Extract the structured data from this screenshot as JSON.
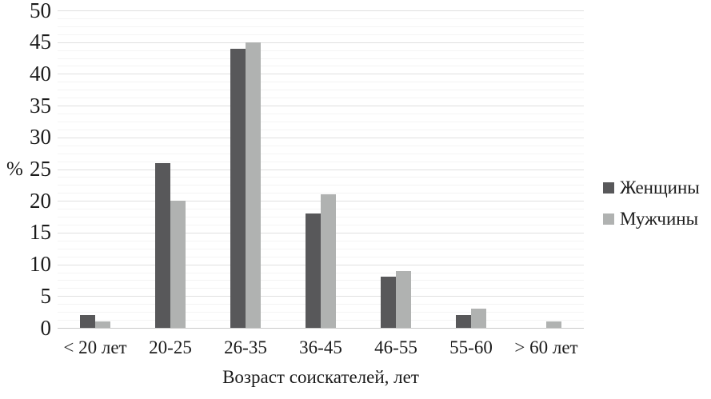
{
  "chart_data": {
    "type": "bar",
    "title": "",
    "categories": [
      "< 20 лет",
      "20-25",
      "26-35",
      "36-45",
      "46-55",
      "55-60",
      "> 60 лет"
    ],
    "series": [
      {
        "name": "Женщины",
        "color": "#58585a",
        "values": [
          2,
          26,
          44,
          18,
          8,
          2,
          0
        ]
      },
      {
        "name": "Мужчины",
        "color": "#b0b2b1",
        "values": [
          1,
          20,
          45,
          21,
          9,
          3,
          1
        ]
      }
    ],
    "xlabel": "Возраст соискателей, лет",
    "ylabel": "%",
    "ylim": [
      0,
      50
    ],
    "y_ticks": [
      0,
      5,
      10,
      15,
      20,
      25,
      30,
      35,
      40,
      45,
      50
    ],
    "minor_grid_step": 1.25,
    "grid": true,
    "legend_position": "right",
    "grid_colors": {
      "minor": "#f4f4f4",
      "major": "#e0e0e0",
      "baseline": "#c9c9c9"
    },
    "text_color": "#1b1b1b"
  }
}
